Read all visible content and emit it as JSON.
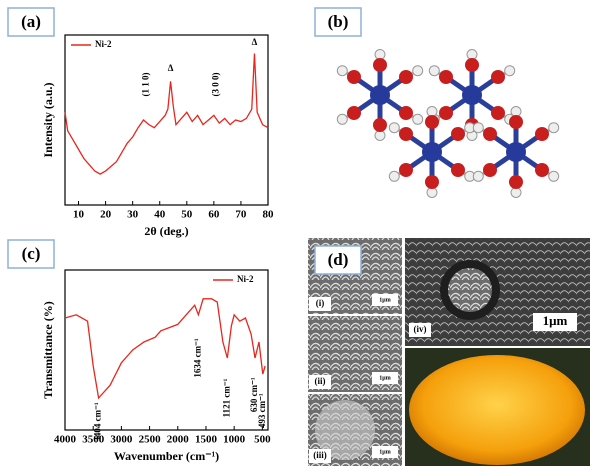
{
  "panels": {
    "a": "(a)",
    "b": "(b)",
    "c": "(c)",
    "d": "(d)"
  },
  "chart_data": [
    {
      "type": "line",
      "x_label": "2θ (deg.)",
      "y_label": "Intensity (a.u.)",
      "legend": "upper left",
      "xlim": [
        5,
        80
      ],
      "xticks": [
        10,
        20,
        30,
        40,
        50,
        60,
        70,
        80
      ],
      "ylim": [
        0,
        110
      ],
      "series": [
        {
          "name": "Ni-2",
          "color": "#e8261e",
          "x": [
            5,
            6,
            8,
            10,
            12,
            14,
            16,
            18,
            20,
            22,
            24,
            26,
            28,
            30,
            32,
            34,
            36,
            38,
            40,
            42,
            43,
            44,
            45,
            46,
            48,
            50,
            52,
            54,
            56,
            58,
            60,
            62,
            64,
            66,
            68,
            70,
            72,
            74,
            75,
            76,
            78,
            80
          ],
          "values": [
            60,
            48,
            42,
            36,
            30,
            26,
            22,
            20,
            22,
            25,
            28,
            34,
            40,
            44,
            50,
            55,
            52,
            50,
            54,
            58,
            62,
            80,
            64,
            52,
            56,
            60,
            54,
            58,
            52,
            55,
            58,
            53,
            56,
            52,
            55,
            54,
            56,
            62,
            98,
            60,
            52,
            50
          ]
        }
      ],
      "annotations": [
        {
          "text": "(1 1 0)",
          "x": 35,
          "y": 78,
          "vertical": true
        },
        {
          "text": "Δ",
          "x": 44,
          "y": 88,
          "vertical": false
        },
        {
          "text": "(3 0 0)",
          "x": 61,
          "y": 78,
          "vertical": true
        },
        {
          "text": "Δ",
          "x": 75,
          "y": 105,
          "vertical": false
        }
      ]
    },
    {
      "type": "line",
      "x_label": "Wavenumber (cm⁻¹)",
      "y_label": "Transmittance (%)",
      "legend": "upper right",
      "xlim": [
        4000,
        400
      ],
      "xticks": [
        4000,
        3500,
        3000,
        2500,
        2000,
        1500,
        1000,
        500
      ],
      "ylim": [
        0,
        100
      ],
      "series": [
        {
          "name": "Ni-2",
          "color": "#e8261e",
          "x": [
            4000,
            3800,
            3600,
            3500,
            3404,
            3200,
            3000,
            2800,
            2600,
            2400,
            2300,
            2000,
            1800,
            1700,
            1634,
            1550,
            1400,
            1300,
            1200,
            1121,
            1050,
            1000,
            900,
            800,
            700,
            630,
            560,
            493,
            450
          ],
          "values": [
            70,
            72,
            68,
            40,
            20,
            28,
            42,
            50,
            55,
            58,
            62,
            66,
            74,
            78,
            72,
            82,
            82,
            80,
            55,
            45,
            65,
            72,
            68,
            70,
            60,
            45,
            55,
            35,
            40
          ]
        }
      ],
      "annotations": [
        {
          "text": "3404 cm⁻¹",
          "x": 3404,
          "y": 5,
          "vertical": true
        },
        {
          "text": "1634 cm⁻¹",
          "x": 1634,
          "y": 45,
          "vertical": true
        },
        {
          "text": "1121 cm⁻¹",
          "x": 1121,
          "y": 20,
          "vertical": true
        },
        {
          "text": "630 cm⁻¹",
          "x": 630,
          "y": 22,
          "vertical": true
        },
        {
          "text": "493 cm⁻¹",
          "x": 493,
          "y": 12,
          "vertical": true
        }
      ]
    }
  ],
  "sem": {
    "labels": [
      "(i)",
      "(ii)",
      "(iii)",
      "(iv)"
    ],
    "scale": [
      "1μm",
      "1μm",
      "1μm",
      "1μm"
    ]
  }
}
